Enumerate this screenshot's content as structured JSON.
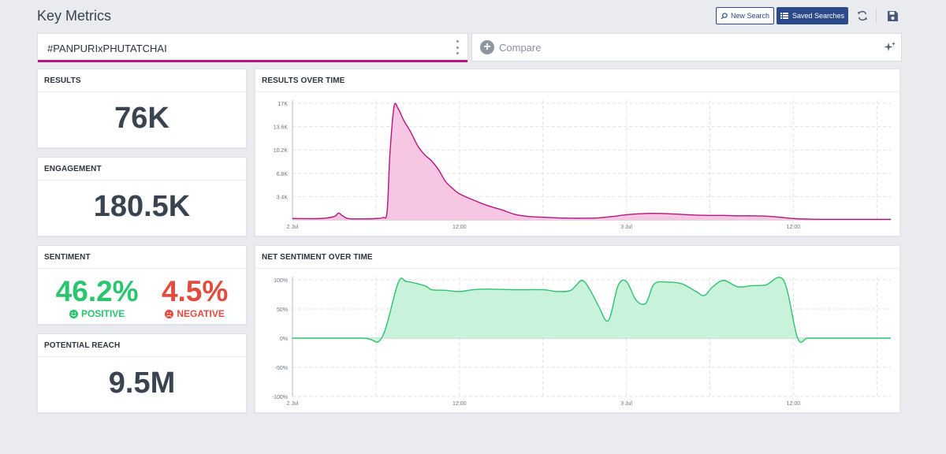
{
  "header": {
    "title": "Key Metrics",
    "new_search_label": "New Search",
    "saved_searches_label": "Saved Searches"
  },
  "query": {
    "text": "#PANPURIxPHUTATCHAI",
    "compare_label": "Compare"
  },
  "metrics": {
    "results": {
      "title": "RESULTS",
      "value": "76K"
    },
    "engagement": {
      "title": "ENGAGEMENT",
      "value": "180.5K"
    },
    "sentiment": {
      "title": "SENTIMENT",
      "positive_value": "46.2%",
      "positive_label": "POSITIVE",
      "negative_value": "4.5%",
      "negative_label": "NEGATIVE"
    },
    "reach": {
      "title": "POTENTIAL REACH",
      "value": "9.5M"
    }
  },
  "colors": {
    "accent": "#b5157f",
    "primary": "#2b4a8b",
    "positive": "#2bc46f",
    "negative": "#e24c3f"
  },
  "chart_data": [
    {
      "type": "area",
      "title": "RESULTS OVER TIME",
      "x_ticks": [
        "2 Jul",
        "12:00",
        "3 Jul",
        "12:00"
      ],
      "y_ticks": [
        "3.4K",
        "6.8K",
        "10.2K",
        "13.6K",
        "17K"
      ],
      "ylim": [
        0,
        17000
      ],
      "grid": true,
      "series": [
        {
          "color": "#b5157f",
          "fill": "#f7c6e2",
          "x_hours": [
            0,
            2,
            3,
            3.3,
            3.6,
            4,
            5,
            6,
            6.5,
            6.8,
            7,
            7.3,
            7.6,
            8,
            8.5,
            9,
            9.5,
            10,
            10.5,
            11,
            11.5,
            12,
            13,
            14,
            15,
            16,
            17,
            18,
            19,
            20,
            21,
            22,
            23,
            24,
            25,
            26,
            27,
            28,
            29,
            30,
            31,
            32,
            33,
            34,
            35,
            36,
            37,
            38,
            39,
            40,
            41,
            42,
            43
          ],
          "values": [
            200,
            200,
            500,
            1000,
            600,
            200,
            150,
            200,
            350,
            1200,
            9500,
            16500,
            16200,
            14500,
            12800,
            10800,
            9500,
            8600,
            7300,
            5600,
            4600,
            3800,
            2900,
            2100,
            1500,
            800,
            500,
            400,
            300,
            250,
            250,
            300,
            500,
            750,
            900,
            950,
            900,
            800,
            700,
            650,
            650,
            600,
            600,
            550,
            400,
            200,
            120,
            80,
            80,
            80,
            80,
            80,
            80
          ]
        }
      ]
    },
    {
      "type": "area",
      "title": "NET SENTIMENT OVER TIME",
      "x_ticks": [
        "2 Jul",
        "12:00",
        "3 Jul",
        "12:00"
      ],
      "y_ticks": [
        "-100%",
        "-50%",
        "0%",
        "50%",
        "100%"
      ],
      "ylim": [
        -100,
        100
      ],
      "grid": true,
      "series": [
        {
          "color": "#2bc46f",
          "fill": "#c8f2d9",
          "x_hours": [
            0,
            5,
            6.4,
            7.6,
            8.2,
            9.5,
            10,
            11,
            12,
            13,
            14,
            16,
            18,
            19,
            20,
            20.8,
            21.4,
            22,
            22.7,
            23.4,
            24,
            24.7,
            25.4,
            26,
            27,
            28,
            29,
            29.6,
            30.2,
            31,
            32,
            33,
            34,
            35.3,
            36.3,
            37,
            38,
            39,
            43
          ],
          "values": [
            0,
            0,
            0,
            95,
            97,
            90,
            83,
            82,
            80,
            83,
            84,
            83,
            83,
            80,
            82,
            99,
            82,
            55,
            30,
            90,
            97,
            65,
            60,
            93,
            96,
            93,
            80,
            73,
            88,
            99,
            88,
            90,
            91,
            99,
            0,
            0,
            0,
            0,
            0
          ]
        }
      ]
    }
  ]
}
